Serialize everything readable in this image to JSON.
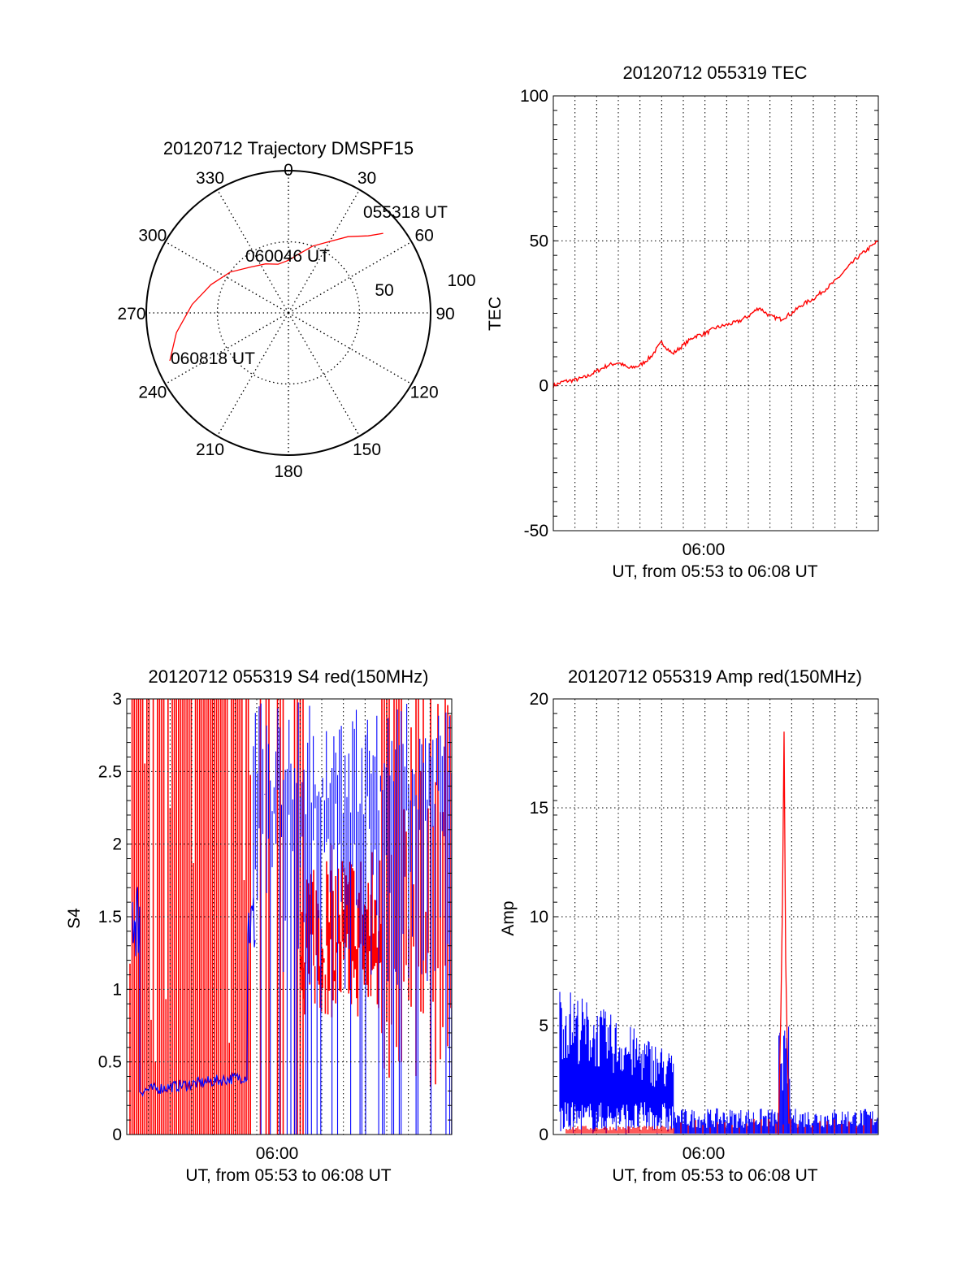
{
  "colors": {
    "red": "#ff0000",
    "blue": "#0000ff",
    "axis": "#000000",
    "grid": "#000000"
  },
  "chart_data": [
    {
      "type": "polar",
      "title": "20120712 Trajectory DMSPF15",
      "angle_labels": [
        "0",
        "30",
        "60",
        "90",
        "120",
        "150",
        "180",
        "210",
        "240",
        "270",
        "300",
        "330"
      ],
      "radial_labels": [
        "50",
        "100"
      ],
      "rlim": [
        0,
        100
      ],
      "series": [
        {
          "color": "red",
          "azimuth_deg": [
            50,
            46,
            38,
            30,
            20,
            10,
            0,
            -12,
            -25,
            -40,
            -55,
            -70,
            -85,
            -100,
            -112
          ],
          "zenith_deg": [
            87,
            78,
            68,
            58,
            50,
            42,
            37,
            35,
            38,
            42,
            50,
            58,
            68,
            80,
            90
          ]
        }
      ],
      "annotations": [
        {
          "text": "055318 UT",
          "azimuth_deg": 55,
          "zenith_deg": 95
        },
        {
          "text": "060046 UT",
          "azimuth_deg": 5,
          "zenith_deg": 37
        },
        {
          "text": "060818 UT",
          "azimuth_deg": -124,
          "zenith_deg": 70
        }
      ],
      "grid": true
    },
    {
      "type": "line",
      "title": "20120712 055319 TEC",
      "ylabel": "TEC",
      "xtick_label": "06:00",
      "xlabel": "UT, from 05:53 to 06:08 UT",
      "ylim": [
        -50,
        100
      ],
      "yticks": [
        "100",
        "50",
        "0",
        "-50"
      ],
      "series": [
        {
          "color": "red",
          "x_min": [
            0,
            0.5,
            1,
            1.5,
            2,
            2.5,
            3,
            3.5,
            4,
            4.5,
            5,
            5.5,
            6,
            6.5,
            7,
            7.5,
            8,
            8.5,
            9,
            9.5,
            10,
            10.5,
            11,
            11.5,
            12,
            12.5,
            13,
            13.5,
            14,
            14.5,
            15
          ],
          "y": [
            0,
            1.5,
            2,
            3,
            5,
            7,
            8,
            6,
            7,
            10,
            15,
            11,
            14,
            17,
            18,
            20,
            21,
            22,
            24,
            27,
            24,
            23,
            25,
            28,
            30,
            33,
            36,
            40,
            44,
            47,
            50
          ]
        }
      ],
      "grid": true
    },
    {
      "type": "line",
      "title": "20120712 055319 S4 red(150MHz)",
      "ylabel": "S4",
      "xtick_label": "06:00",
      "xlabel": "UT, from 05:53 to 06:08 UT",
      "ylim": [
        0,
        3
      ],
      "yticks": [
        "3",
        "2.5",
        "2",
        "1.5",
        "1",
        "0.5",
        "0"
      ],
      "series": [
        {
          "name": "red",
          "color": "red",
          "note": "dense spikes 0–3 from 05:53–06:01, cluster 0.8–2 around 06:02–06:03, spikes after"
        },
        {
          "name": "blue",
          "color": "blue",
          "y_start": 1.5,
          "y_band": 0.3,
          "band_end_min": 5.5
        }
      ],
      "grid": true
    },
    {
      "type": "line",
      "title": "20120712 055319 Amp red(150MHz)",
      "ylabel": "Amp",
      "xtick_label": "06:00",
      "xlabel": "UT, from 05:53 to 06:08 UT",
      "ylim": [
        0,
        20
      ],
      "yticks": [
        "20",
        "15",
        "10",
        "5",
        "0"
      ],
      "series": [
        {
          "name": "blue",
          "color": "blue",
          "envelope_high_start": 7,
          "envelope_high_end": 3.5,
          "drop_at_min": 5.3,
          "tail_level": 0.5
        },
        {
          "name": "red",
          "color": "red",
          "base_level": 0.2,
          "peak": 18.5,
          "peak_at_min": 10.5
        }
      ],
      "grid": true
    }
  ]
}
